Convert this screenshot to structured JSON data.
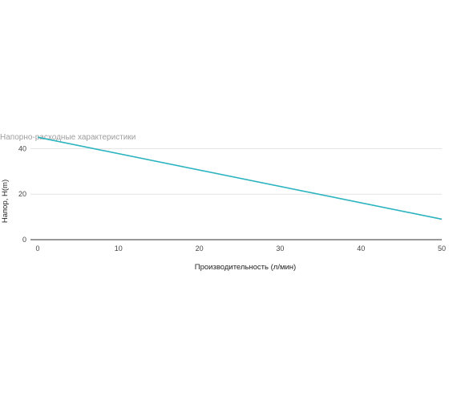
{
  "chart_data": {
    "type": "line",
    "title": "Напорно-расходные характеристики",
    "xlabel": "Производительность (л/мин)",
    "ylabel": "Напор, H(m)",
    "xlim": [
      0,
      50
    ],
    "ylim": [
      0,
      50
    ],
    "x_ticks": [
      "0",
      "10",
      "20",
      "30",
      "40",
      "50"
    ],
    "y_ticks": [
      "0",
      "20",
      "40"
    ],
    "grid": true,
    "legend": "none",
    "series": [
      {
        "color": "#2bb3c0",
        "points": [
          {
            "x": 0,
            "y": 45
          },
          {
            "x": 50,
            "y": 9
          }
        ]
      }
    ]
  }
}
